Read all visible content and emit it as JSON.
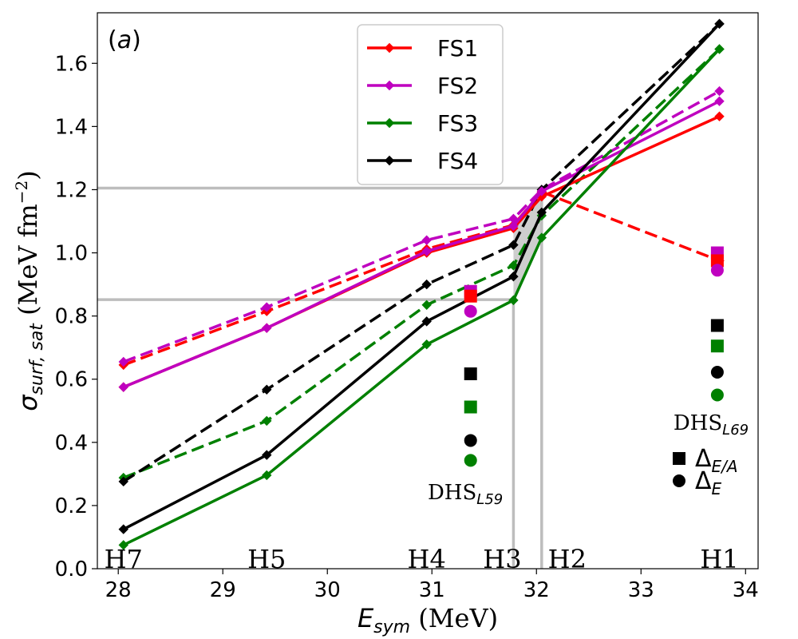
{
  "chart_data": {
    "type": "line",
    "panel_label": "(a)",
    "ylabel": "σ_surf,sat (MeV fm⁻²)",
    "ylabel_parts": {
      "sigma": "σ",
      "subscript": "surf, sat",
      "unit": "(MeV fm",
      "exponent": "−2",
      "close": ")"
    },
    "xlabel_parts": {
      "var": "E",
      "subscript": "sym",
      "unit": "(MeV)"
    },
    "xlim": [
      27.8,
      34.12
    ],
    "ylim": [
      0,
      1.76
    ],
    "xticks": [
      28,
      29,
      30,
      31,
      32,
      33,
      34
    ],
    "yticks": [
      0.0,
      0.2,
      0.4,
      0.6,
      0.8,
      1.0,
      1.2,
      1.4,
      1.6
    ],
    "ytick_labels": [
      "0.0",
      "0.2",
      "0.4",
      "0.6",
      "0.8",
      "1.0",
      "1.2",
      "1.4",
      "1.6"
    ],
    "x_points": [
      28.05,
      29.42,
      30.95,
      31.78,
      32.05,
      33.75
    ],
    "series": [
      {
        "name": "FS1",
        "color": "#ff0000",
        "solid": [
          0.575,
          0.762,
          1.0,
          1.078,
          1.178,
          1.432
        ],
        "dashed": [
          0.645,
          0.815,
          1.012,
          1.088,
          1.193,
          0.975
        ]
      },
      {
        "name": "FS2",
        "color": "#bf00bf",
        "solid": [
          0.575,
          0.762,
          1.005,
          1.085,
          1.195,
          1.48
        ],
        "dashed": [
          0.655,
          0.828,
          1.04,
          1.108,
          1.2,
          1.512
        ]
      },
      {
        "name": "FS3",
        "color": "#008000",
        "solid": [
          0.075,
          0.296,
          0.71,
          0.85,
          1.048,
          1.645
        ],
        "dashed": [
          0.288,
          0.468,
          0.835,
          0.96,
          1.118,
          1.645
        ]
      },
      {
        "name": "FS4",
        "color": "#000000",
        "solid": [
          0.125,
          0.36,
          0.783,
          0.925,
          1.128,
          1.725
        ],
        "dashed": [
          0.276,
          0.567,
          0.9,
          1.025,
          1.2,
          1.725
        ]
      }
    ],
    "reference_lines": {
      "horizontal": [
        1.205,
        0.852
      ],
      "vertical": [
        31.78,
        32.05
      ]
    },
    "shaded_band": {
      "x": [
        31.78,
        32.05
      ],
      "y_low": [
        0.852,
        1.048
      ],
      "y_high": [
        1.085,
        1.205
      ]
    },
    "annotations": {
      "models": [
        {
          "label": "H7",
          "x": 28.05
        },
        {
          "label": "H5",
          "x": 29.42
        },
        {
          "label": "H4",
          "x": 30.95
        },
        {
          "label": "H3",
          "x": 31.78
        },
        {
          "label": "H2",
          "x": 32.05
        },
        {
          "label": "H1",
          "x": 33.75
        }
      ],
      "dhs_l59": {
        "label": "DHS",
        "subscript": "L59",
        "x": 31.35,
        "y": 0.25
      },
      "dhs_l69": {
        "label": "DHS",
        "subscript": "L69",
        "x": 33.7,
        "y": 0.47
      }
    },
    "dhs_markers": [
      {
        "group": "L59",
        "x": 31.37,
        "y": 0.878,
        "shape": "square",
        "color": "#bf00bf"
      },
      {
        "group": "L59",
        "x": 31.37,
        "y": 0.863,
        "shape": "square",
        "color": "#ff0000"
      },
      {
        "group": "L59",
        "x": 31.37,
        "y": 0.815,
        "shape": "circle",
        "color": "#bf00bf"
      },
      {
        "group": "L59",
        "x": 31.37,
        "y": 0.617,
        "shape": "square",
        "color": "#000000"
      },
      {
        "group": "L59",
        "x": 31.37,
        "y": 0.512,
        "shape": "square",
        "color": "#008000"
      },
      {
        "group": "L59",
        "x": 31.37,
        "y": 0.406,
        "shape": "circle",
        "color": "#000000"
      },
      {
        "group": "L59",
        "x": 31.37,
        "y": 0.343,
        "shape": "circle",
        "color": "#008000"
      },
      {
        "group": "L69",
        "x": 33.73,
        "y": 1.0,
        "shape": "square",
        "color": "#bf00bf"
      },
      {
        "group": "L69",
        "x": 33.73,
        "y": 0.975,
        "shape": "square",
        "color": "#ff0000"
      },
      {
        "group": "L69",
        "x": 33.73,
        "y": 0.945,
        "shape": "circle",
        "color": "#bf00bf"
      },
      {
        "group": "L69",
        "x": 33.73,
        "y": 0.77,
        "shape": "square",
        "color": "#000000"
      },
      {
        "group": "L69",
        "x": 33.73,
        "y": 0.705,
        "shape": "square",
        "color": "#008000"
      },
      {
        "group": "L69",
        "x": 33.73,
        "y": 0.622,
        "shape": "circle",
        "color": "#000000"
      },
      {
        "group": "L69",
        "x": 33.73,
        "y": 0.55,
        "shape": "circle",
        "color": "#008000"
      }
    ],
    "marker_legend": [
      {
        "shape": "square",
        "label": "Δ",
        "subscript": "E/A"
      },
      {
        "shape": "circle",
        "label": "Δ",
        "subscript": "E"
      }
    ],
    "legend_position": "top-center"
  }
}
